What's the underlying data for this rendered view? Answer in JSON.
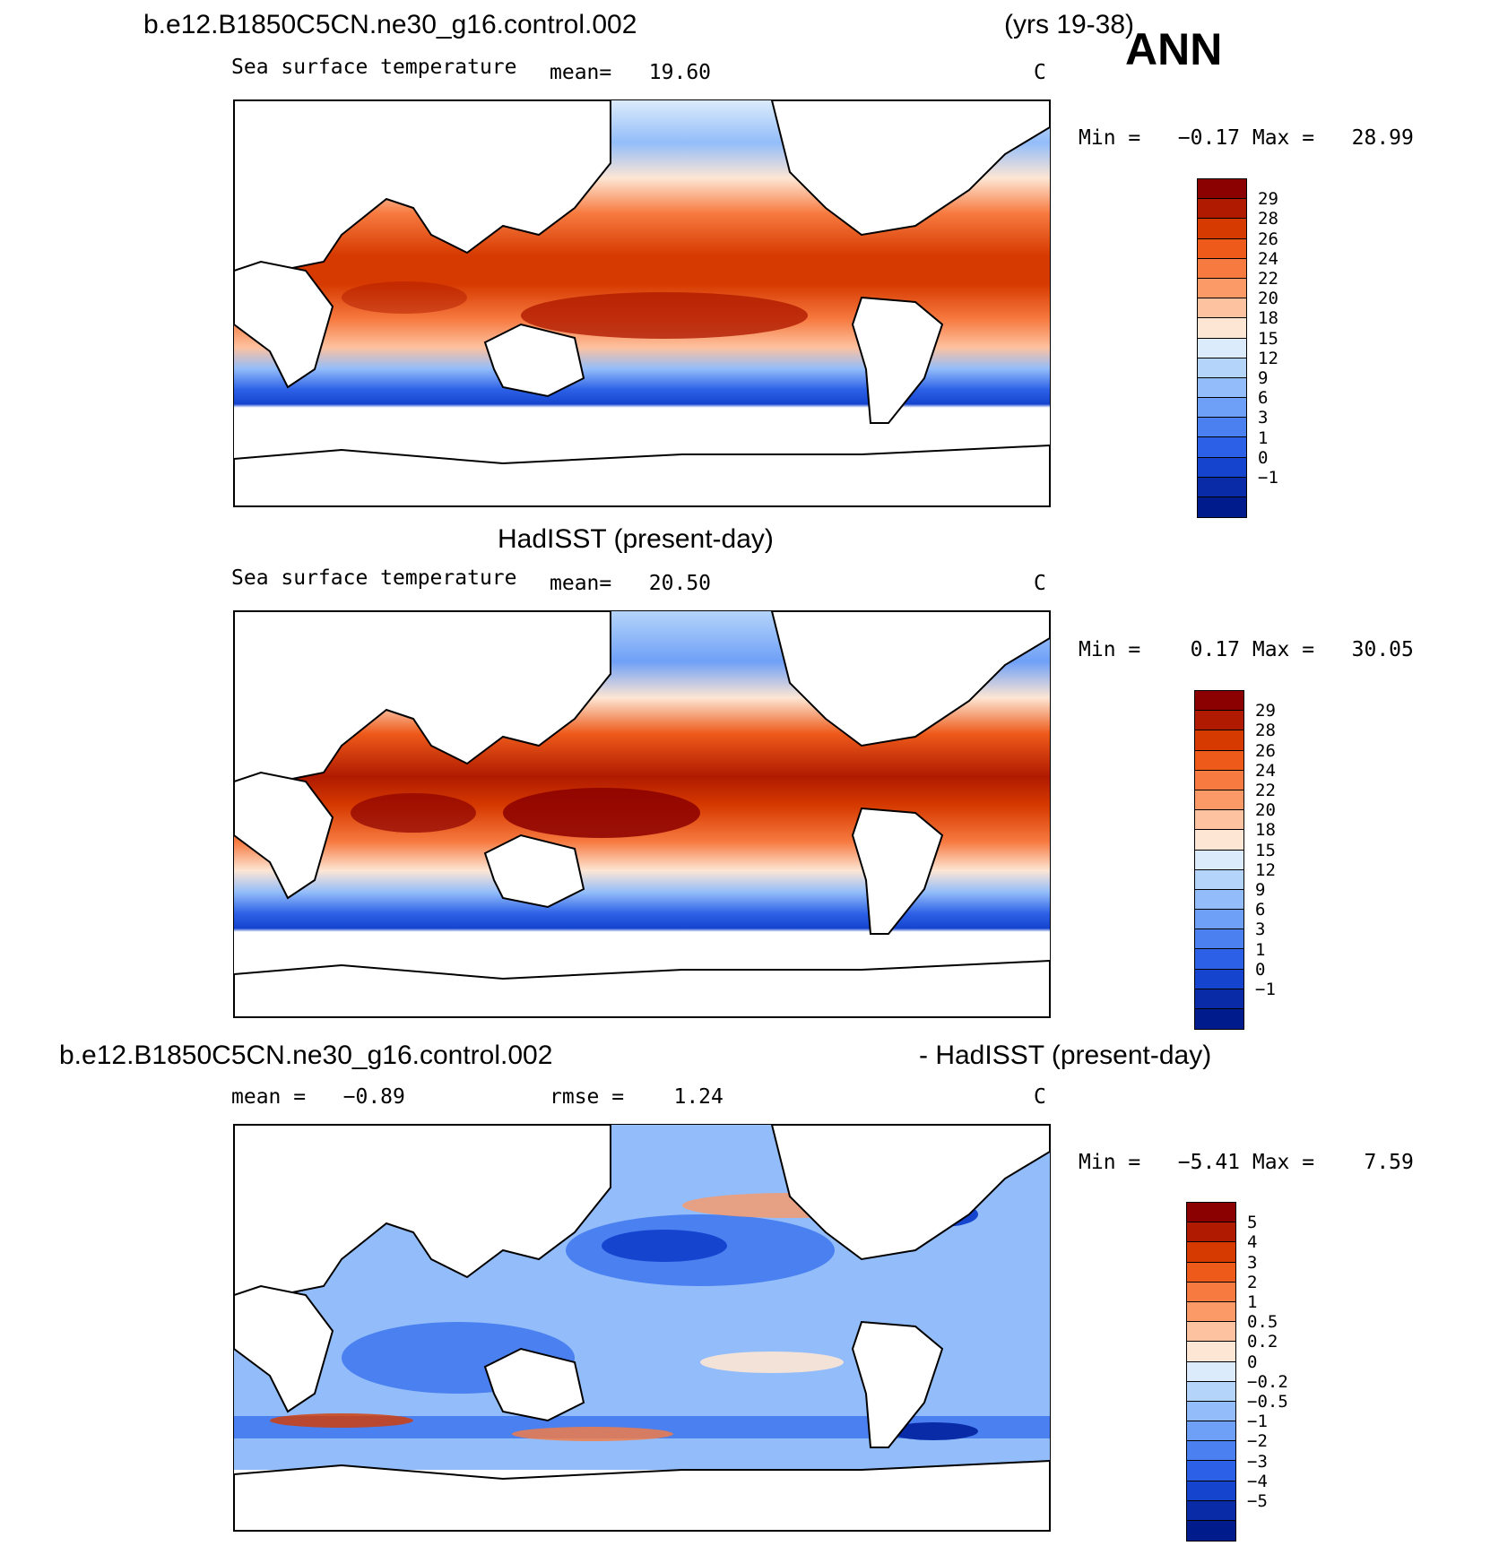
{
  "header": {
    "case_name": "b.e12.B1850C5CN.ne30_g16.control.002",
    "years": "(yrs 19-38)",
    "season": "ANN"
  },
  "panels": [
    {
      "id": "model",
      "title": "",
      "variable": "Sea surface temperature",
      "stat_left": "mean=   19.60",
      "stat_mid": "",
      "units": "C",
      "minmax": "Min =   −0.17 Max =   28.99",
      "colorbar": {
        "colors": [
          "#8b0000",
          "#b01a00",
          "#d63a00",
          "#ee5a1a",
          "#f77a40",
          "#fb9a66",
          "#fdc2a0",
          "#fde6d4",
          "#dcebfb",
          "#b5d4fa",
          "#93bdfa",
          "#6fa0f7",
          "#4a80f0",
          "#2c60e6",
          "#1544cf",
          "#0a2ba8",
          "#001c8c"
        ],
        "labels": [
          "29",
          "28",
          "26",
          "24",
          "22",
          "20",
          "18",
          "15",
          "12",
          "9",
          "6",
          "3",
          "1",
          "0",
          "−1"
        ]
      }
    },
    {
      "id": "obs",
      "title": "HadISST (present-day)",
      "variable": "Sea surface temperature",
      "stat_left": "mean=   20.50",
      "stat_mid": "",
      "units": "C",
      "minmax": "Min =    0.17 Max =   30.05",
      "colorbar": {
        "colors": [
          "#8b0000",
          "#b01a00",
          "#d63a00",
          "#ee5a1a",
          "#f77a40",
          "#fb9a66",
          "#fdc2a0",
          "#fde6d4",
          "#dcebfb",
          "#b5d4fa",
          "#93bdfa",
          "#6fa0f7",
          "#4a80f0",
          "#2c60e6",
          "#1544cf",
          "#0a2ba8",
          "#001c8c"
        ],
        "labels": [
          "29",
          "28",
          "26",
          "24",
          "22",
          "20",
          "18",
          "15",
          "12",
          "9",
          "6",
          "3",
          "1",
          "0",
          "−1"
        ]
      }
    },
    {
      "id": "diff",
      "title_left": "b.e12.B1850C5CN.ne30_g16.control.002",
      "title_right": "- HadISST (present-day)",
      "stat_left": "mean =   −0.89",
      "stat_mid": "rmse =    1.24",
      "units": "C",
      "minmax": "Min =   −5.41 Max =    7.59",
      "colorbar": {
        "colors": [
          "#8b0000",
          "#b01a00",
          "#d63a00",
          "#ee5a1a",
          "#f77a40",
          "#fb9a66",
          "#fdc2a0",
          "#fde6d4",
          "#dcebfb",
          "#b5d4fa",
          "#93bdfa",
          "#6fa0f7",
          "#4a80f0",
          "#2c60e6",
          "#1544cf",
          "#0a2ba8",
          "#001c8c"
        ],
        "labels": [
          "5",
          "4",
          "3",
          "2",
          "1",
          "0.5",
          "0.2",
          "0",
          "−0.2",
          "−0.5",
          "−1",
          "−2",
          "−3",
          "−4",
          "−5"
        ]
      }
    }
  ]
}
